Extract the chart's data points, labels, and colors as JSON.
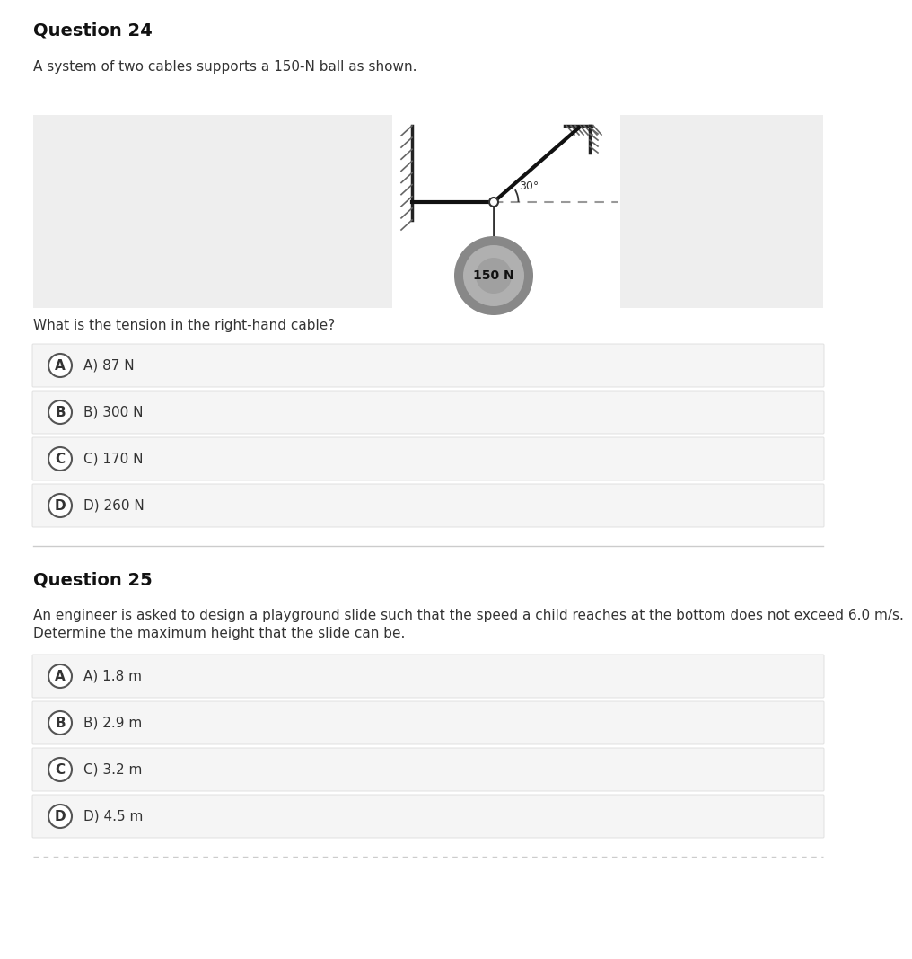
{
  "bg_color": "#ffffff",
  "q24_title": "Question 24",
  "q24_description": "A system of two cables supports a 150-N ball as shown.",
  "q24_question": "What is the tension in the right-hand cable?",
  "q24_options": [
    "A) 87 N",
    "B) 300 N",
    "C) 170 N",
    "D) 260 N"
  ],
  "q24_option_labels": [
    "A",
    "B",
    "C",
    "D"
  ],
  "q25_title": "Question 25",
  "q25_description_line1": "An engineer is asked to design a playground slide such that the speed a child reaches at the bottom does not exceed 6.0 m/s.",
  "q25_description_line2": "Determine the maximum height that the slide can be.",
  "q25_options": [
    "A) 1.8 m",
    "B) 2.9 m",
    "C) 3.2 m",
    "D) 4.5 m"
  ],
  "q25_option_labels": [
    "A",
    "B",
    "C",
    "D"
  ],
  "option_bg_color": "#f5f5f5",
  "option_border_color": "#dddddd",
  "label_circle_color": "#ffffff",
  "label_circle_border": "#555555",
  "title_fontsize": 14,
  "desc_fontsize": 11,
  "option_fontsize": 11,
  "separator_color": "#cccccc",
  "diag_left_bg": "#eeeeee",
  "diag_right_bg": "#eeeeee",
  "diag_center_bg": "#ffffff",
  "ball_outer_color": "#888888",
  "ball_mid_color": "#b0b0b0",
  "ball_inner_color": "#a0a0a0",
  "wall_color": "#bbbbbb",
  "cable_color": "#111111",
  "dash_color": "#999999"
}
